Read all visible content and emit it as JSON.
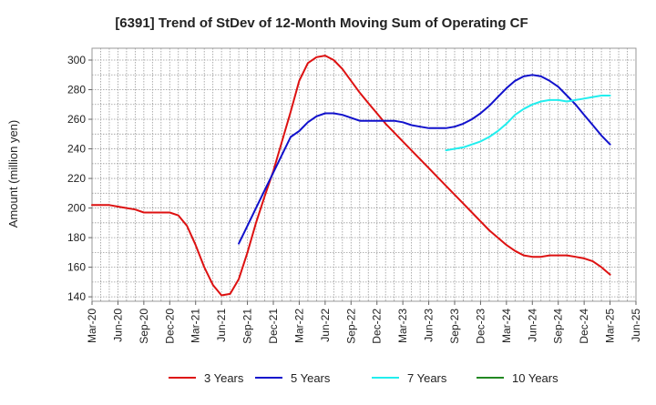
{
  "chart_data": {
    "type": "line",
    "title": "[6391]  Trend of StDev of 12-Month Moving Sum of Operating CF",
    "ylabel": "Amount (million yen)",
    "xlabel": "",
    "ylim": [
      137,
      308
    ],
    "yticks": [
      140,
      160,
      180,
      200,
      220,
      240,
      260,
      280,
      300
    ],
    "x_tick_labels": [
      "Mar-20",
      "Jun-20",
      "Sep-20",
      "Dec-20",
      "Mar-21",
      "Jun-21",
      "Sep-21",
      "Dec-21",
      "Mar-22",
      "Jun-22",
      "Sep-22",
      "Dec-22",
      "Mar-23",
      "Jun-23",
      "Sep-23",
      "Dec-23",
      "Mar-24",
      "Jun-24",
      "Sep-24",
      "Dec-24",
      "Mar-25",
      "Jun-25"
    ],
    "grid": true,
    "legend_position": "bottom",
    "series": [
      {
        "name": "3 Years",
        "color": "#dd1111",
        "x": [
          "Mar-20",
          "Apr-20",
          "May-20",
          "Jun-20",
          "Jul-20",
          "Aug-20",
          "Sep-20",
          "Oct-20",
          "Nov-20",
          "Dec-20",
          "Jan-21",
          "Feb-21",
          "Mar-21",
          "Apr-21",
          "May-21",
          "Jun-21",
          "Jul-21",
          "Aug-21",
          "Sep-21",
          "Oct-21",
          "Nov-21",
          "Dec-21",
          "Jan-22",
          "Feb-22",
          "Mar-22",
          "Apr-22",
          "May-22",
          "Jun-22",
          "Jul-22",
          "Aug-22",
          "Sep-22",
          "Oct-22",
          "Nov-22",
          "Dec-22",
          "Jan-23",
          "Feb-23",
          "Mar-23",
          "Apr-23",
          "May-23",
          "Jun-23",
          "Jul-23",
          "Aug-23",
          "Sep-23",
          "Oct-23",
          "Nov-23",
          "Dec-23",
          "Jan-24",
          "Feb-24",
          "Mar-24",
          "Apr-24",
          "May-24",
          "Jun-24",
          "Jul-24",
          "Aug-24",
          "Sep-24",
          "Oct-24",
          "Nov-24",
          "Dec-24",
          "Jan-25",
          "Feb-25",
          "Mar-25"
        ],
        "values": [
          202,
          202,
          202,
          201,
          200,
          199,
          197,
          197,
          197,
          197,
          195,
          188,
          175,
          160,
          148,
          141,
          142,
          152,
          170,
          190,
          208,
          225,
          245,
          265,
          286,
          298,
          302,
          303,
          300,
          294,
          286,
          278,
          271,
          264,
          257,
          251,
          245,
          239,
          233,
          227,
          221,
          215,
          209,
          203,
          197,
          191,
          185,
          180,
          175,
          171,
          168,
          167,
          167,
          168,
          168,
          168,
          167,
          166,
          164,
          160,
          155
        ]
      },
      {
        "name": "5 Years",
        "color": "#1111cc",
        "x": [
          "Aug-21",
          "Sep-21",
          "Oct-21",
          "Nov-21",
          "Dec-21",
          "Jan-22",
          "Feb-22",
          "Mar-22",
          "Apr-22",
          "May-22",
          "Jun-22",
          "Jul-22",
          "Aug-22",
          "Sep-22",
          "Oct-22",
          "Nov-22",
          "Dec-22",
          "Jan-23",
          "Feb-23",
          "Mar-23",
          "Apr-23",
          "May-23",
          "Jun-23",
          "Jul-23",
          "Aug-23",
          "Sep-23",
          "Oct-23",
          "Nov-23",
          "Dec-23",
          "Jan-24",
          "Feb-24",
          "Mar-24",
          "Apr-24",
          "May-24",
          "Jun-24",
          "Jul-24",
          "Aug-24",
          "Sep-24",
          "Oct-24",
          "Nov-24",
          "Dec-24",
          "Jan-25",
          "Feb-25",
          "Mar-25"
        ],
        "values": [
          176,
          188,
          200,
          212,
          224,
          236,
          248,
          252,
          258,
          262,
          264,
          264,
          263,
          261,
          259,
          259,
          259,
          259,
          259,
          258,
          256,
          255,
          254,
          254,
          254,
          255,
          257,
          260,
          264,
          269,
          275,
          281,
          286,
          289,
          290,
          289,
          286,
          282,
          276,
          270,
          263,
          256,
          249,
          243
        ]
      },
      {
        "name": "7 Years",
        "color": "#22eeee",
        "x": [
          "Aug-23",
          "Sep-23",
          "Oct-23",
          "Nov-23",
          "Dec-23",
          "Jan-24",
          "Feb-24",
          "Mar-24",
          "Apr-24",
          "May-24",
          "Jun-24",
          "Jul-24",
          "Aug-24",
          "Sep-24",
          "Oct-24",
          "Nov-24",
          "Dec-24",
          "Jan-25",
          "Feb-25",
          "Mar-25"
        ],
        "values": [
          239,
          240,
          241,
          243,
          245,
          248,
          252,
          257,
          263,
          267,
          270,
          272,
          273,
          273,
          272,
          273,
          274,
          275,
          276,
          276
        ]
      },
      {
        "name": "10 Years",
        "color": "#228822",
        "x": [],
        "values": []
      }
    ]
  }
}
